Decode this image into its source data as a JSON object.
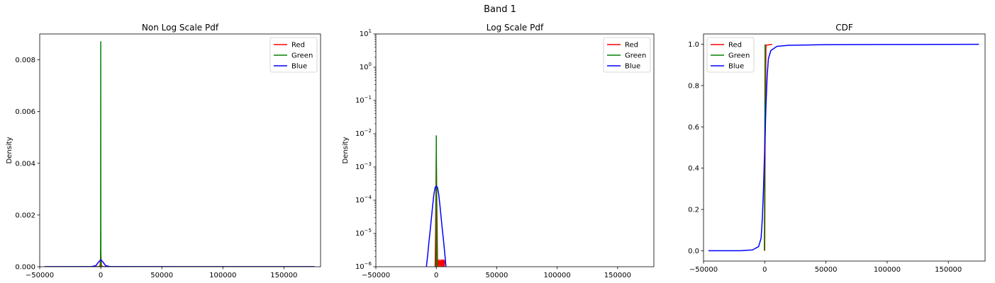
{
  "figure": {
    "suptitle": "Band 1"
  },
  "colors": {
    "red": "#ff0000",
    "green": "#008000",
    "blue": "#0000ff"
  },
  "chart_data": [
    {
      "type": "line",
      "title": "Non Log Scale Pdf",
      "xlabel": "",
      "ylabel": "Density",
      "xlim": [
        -50000,
        180000
      ],
      "ylim": [
        0,
        0.009
      ],
      "yscale": "linear",
      "xticks": [
        -50000,
        0,
        50000,
        100000,
        150000
      ],
      "yticks": [
        0,
        0.002,
        0.004,
        0.006,
        0.008
      ],
      "ytick_labels": [
        "0.000",
        "0.002",
        "0.004",
        "0.006",
        "0.008"
      ],
      "legend": {
        "position": "top-right",
        "entries": [
          "Red",
          "Green",
          "Blue"
        ]
      },
      "series": [
        {
          "name": "Red",
          "color": "red",
          "x": [
            -46000,
            -1500,
            -500,
            -200,
            0,
            200,
            500,
            1500,
            175000
          ],
          "y": [
            0,
            0,
            5e-05,
            0.00035,
            0.0006,
            0.00035,
            5e-05,
            0,
            0
          ]
        },
        {
          "name": "Green",
          "color": "green",
          "x": [
            -46000,
            -300,
            -150,
            -80,
            0,
            80,
            150,
            300,
            175000
          ],
          "y": [
            0,
            0,
            0,
            0.0015,
            0.0087,
            0.0015,
            0,
            0,
            0
          ]
        },
        {
          "name": "Blue",
          "color": "blue",
          "x": [
            -46000,
            -8000,
            -4000,
            -2000,
            0,
            2000,
            4000,
            8000,
            175000
          ],
          "y": [
            0,
            2e-06,
            4e-05,
            0.00017,
            0.00027,
            0.00017,
            4e-05,
            2e-06,
            0
          ]
        }
      ]
    },
    {
      "type": "line",
      "title": "Log Scale Pdf",
      "xlabel": "",
      "ylabel": "Density",
      "xlim": [
        -50000,
        180000
      ],
      "ylim": [
        1e-06,
        10
      ],
      "yscale": "log",
      "xticks": [
        -50000,
        0,
        50000,
        100000,
        150000
      ],
      "yticks": [
        -6,
        -5,
        -4,
        -3,
        -2,
        -1,
        0,
        1
      ],
      "legend": {
        "position": "top-right",
        "entries": [
          "Red",
          "Green",
          "Blue"
        ]
      },
      "series": [
        {
          "name": "Red",
          "color": "red",
          "x": [
            -1000,
            -600,
            -400,
            -200,
            0,
            200,
            400,
            700,
            1000,
            1600,
            2200,
            2800,
            3400,
            4000,
            4600,
            5000,
            5600,
            6000,
            6600,
            7000
          ],
          "y": [
            1e-06,
            1e-05,
            8e-05,
            0.0004,
            0.0022,
            0.0004,
            8e-05,
            1.6e-05,
            1e-06,
            1.6e-06,
            1e-06,
            1.6e-06,
            1e-06,
            1.6e-06,
            1e-06,
            1.6e-06,
            1e-06,
            1.6e-06,
            1e-06,
            1.6e-06
          ]
        },
        {
          "name": "Green",
          "color": "green",
          "x": [
            -400,
            -200,
            -100,
            0,
            100,
            200,
            400
          ],
          "y": [
            1e-06,
            3e-05,
            0.0007,
            0.0087,
            0.0007,
            3e-05,
            1e-06
          ]
        },
        {
          "name": "Blue",
          "color": "blue",
          "x": [
            -8200,
            -7000,
            -6000,
            -5000,
            -4000,
            -3000,
            -2000,
            -1000,
            0,
            1000,
            2000,
            3000,
            4000,
            5000,
            6000,
            7000,
            8000
          ],
          "y": [
            1e-06,
            2.5e-06,
            6e-06,
            1.3e-05,
            3e-05,
            7e-05,
            0.00015,
            0.00024,
            0.00027,
            0.00024,
            0.00015,
            7e-05,
            3e-05,
            1.3e-05,
            6e-06,
            2.5e-06,
            1e-06
          ]
        }
      ]
    },
    {
      "type": "line",
      "title": "CDF",
      "xlabel": "",
      "ylabel": "",
      "xlim": [
        -50000,
        180000
      ],
      "ylim": [
        -0.05,
        1.05
      ],
      "yscale": "linear",
      "xticks": [
        -50000,
        0,
        50000,
        100000,
        150000
      ],
      "yticks": [
        0,
        0.2,
        0.4,
        0.6,
        0.8,
        1.0
      ],
      "ytick_labels": [
        "0.0",
        "0.2",
        "0.4",
        "0.6",
        "0.8",
        "1.0"
      ],
      "legend": {
        "position": "top-left",
        "entries": [
          "Red",
          "Green",
          "Blue"
        ]
      },
      "series": [
        {
          "name": "Red",
          "color": "red",
          "x": [
            0,
            300,
            1000,
            6000
          ],
          "y": [
            0,
            0.5,
            0.995,
            1.0
          ]
        },
        {
          "name": "Green",
          "color": "green",
          "x": [
            -300,
            0,
            300
          ],
          "y": [
            0,
            0.5,
            1.0
          ]
        },
        {
          "name": "Blue",
          "color": "blue",
          "x": [
            -46000,
            -20000,
            -10000,
            -5000,
            -3000,
            -2000,
            -1000,
            0,
            1000,
            2000,
            3000,
            5000,
            10000,
            20000,
            50000,
            100000,
            175000
          ],
          "y": [
            0,
            0.0003,
            0.004,
            0.02,
            0.06,
            0.15,
            0.3,
            0.5,
            0.7,
            0.85,
            0.93,
            0.97,
            0.99,
            0.995,
            0.998,
            0.999,
            1.0
          ]
        }
      ]
    }
  ]
}
